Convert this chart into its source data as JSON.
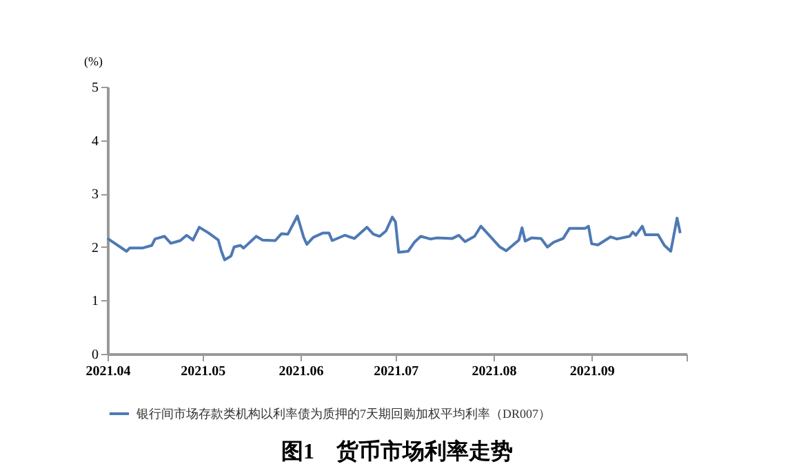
{
  "chart_data": {
    "type": "line",
    "title": "图1　货币市场利率走势",
    "ylabel": "(%)",
    "x": [
      "2021-04-01",
      "2021-04-07",
      "2021-04-08",
      "2021-04-12",
      "2021-04-15",
      "2021-04-16",
      "2021-04-19",
      "2021-04-21",
      "2021-04-24",
      "2021-04-26",
      "2021-04-28",
      "2021-04-30",
      "2021-05-03",
      "2021-05-06",
      "2021-05-07",
      "2021-05-08",
      "2021-05-10",
      "2021-05-11",
      "2021-05-13",
      "2021-05-14",
      "2021-05-18",
      "2021-05-20",
      "2021-05-24",
      "2021-05-26",
      "2021-05-28",
      "2021-05-31",
      "2021-06-02",
      "2021-06-03",
      "2021-06-05",
      "2021-06-08",
      "2021-06-10",
      "2021-06-11",
      "2021-06-15",
      "2021-06-18",
      "2021-06-22",
      "2021-06-24",
      "2021-06-26",
      "2021-06-28",
      "2021-06-30",
      "2021-07-01",
      "2021-07-02",
      "2021-07-05",
      "2021-07-07",
      "2021-07-09",
      "2021-07-12",
      "2021-07-14",
      "2021-07-19",
      "2021-07-21",
      "2021-07-23",
      "2021-07-26",
      "2021-07-28",
      "2021-07-30",
      "2021-08-03",
      "2021-08-05",
      "2021-08-09",
      "2021-08-10",
      "2021-08-11",
      "2021-08-13",
      "2021-08-16",
      "2021-08-18",
      "2021-08-20",
      "2021-08-23",
      "2021-08-25",
      "2021-08-30",
      "2021-08-31",
      "2021-09-01",
      "2021-09-03",
      "2021-09-07",
      "2021-09-09",
      "2021-09-13",
      "2021-09-14",
      "2021-09-15",
      "2021-09-17",
      "2021-09-18",
      "2021-09-22",
      "2021-09-24",
      "2021-09-26",
      "2021-09-28",
      "2021-09-29"
    ],
    "series": [
      {
        "name": "银行间市场存款类机构以利率债为质押的7天期回购加权平均利率（DR007）",
        "color": "#4e79b4",
        "values": [
          2.16,
          1.92,
          1.98,
          1.98,
          2.03,
          2.15,
          2.2,
          2.07,
          2.12,
          2.22,
          2.13,
          2.37,
          2.26,
          2.13,
          1.92,
          1.76,
          1.83,
          2.0,
          2.03,
          1.98,
          2.2,
          2.13,
          2.12,
          2.25,
          2.24,
          2.58,
          2.18,
          2.05,
          2.18,
          2.26,
          2.26,
          2.12,
          2.22,
          2.16,
          2.37,
          2.24,
          2.2,
          2.3,
          2.56,
          2.47,
          1.9,
          1.92,
          2.09,
          2.2,
          2.15,
          2.17,
          2.16,
          2.22,
          2.1,
          2.2,
          2.39,
          2.26,
          2.0,
          1.93,
          2.13,
          2.36,
          2.11,
          2.17,
          2.16,
          2.0,
          2.09,
          2.16,
          2.35,
          2.35,
          2.39,
          2.06,
          2.04,
          2.19,
          2.15,
          2.2,
          2.28,
          2.22,
          2.39,
          2.23,
          2.23,
          2.03,
          1.92,
          2.54,
          2.26
        ]
      }
    ],
    "xlim": [
      "2021-04-01",
      "2021-10-01"
    ],
    "xticks": [
      {
        "value": "2021-04-01",
        "label": "2021.04"
      },
      {
        "value": "2021-05-01",
        "label": "2021.05"
      },
      {
        "value": "2021-06-01",
        "label": "2021.06"
      },
      {
        "value": "2021-07-01",
        "label": "2021.07"
      },
      {
        "value": "2021-08-01",
        "label": "2021.08"
      },
      {
        "value": "2021-09-01",
        "label": "2021.09"
      },
      {
        "value": "2021-10-01",
        "label": null
      }
    ],
    "ylim": [
      0,
      5
    ],
    "yticks": [
      0,
      1,
      2,
      3,
      4,
      5
    ],
    "grid": false,
    "legend": "bottom",
    "marker": "none",
    "line_style": "solid"
  }
}
